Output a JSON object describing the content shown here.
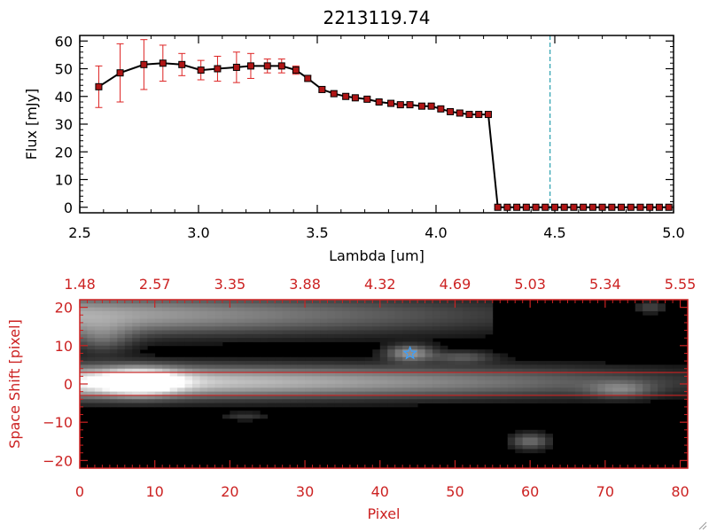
{
  "title": "2213119.74",
  "colors": {
    "axis": "#000000",
    "accent_red": "#cc2222",
    "errorbar": "#dd2222",
    "marker_fill": "#b01515",
    "cursor": "#2aa0b0",
    "star": "#3aa0ff"
  },
  "chart_data": [
    {
      "type": "line",
      "title": "2213119.74",
      "xlabel": "Lambda [um]",
      "ylabel": "Flux [mJy]",
      "xlim": [
        2.5,
        5.0
      ],
      "ylim": [
        -2,
        62
      ],
      "x_ticks": [
        "2.5",
        "3.0",
        "3.5",
        "4.0",
        "4.5",
        "5.0"
      ],
      "y_ticks": [
        "0",
        "10",
        "20",
        "30",
        "40",
        "50",
        "60"
      ],
      "vline_x": 4.48,
      "series": [
        {
          "x": [
            2.58,
            2.67,
            2.77,
            2.85,
            2.93,
            3.01,
            3.08,
            3.16,
            3.22,
            3.29,
            3.35,
            3.41,
            3.46,
            3.52,
            3.57,
            3.62,
            3.66,
            3.71,
            3.76,
            3.81,
            3.85,
            3.89,
            3.94,
            3.98,
            4.02,
            4.06,
            4.1,
            4.14,
            4.18,
            4.22,
            4.26,
            4.3,
            4.34,
            4.38,
            4.42,
            4.46,
            4.5,
            4.54,
            4.58,
            4.62,
            4.66,
            4.7,
            4.74,
            4.78,
            4.82,
            4.86,
            4.9,
            4.94,
            4.98
          ],
          "y": [
            43.5,
            48.5,
            51.5,
            52.0,
            51.5,
            49.5,
            50.0,
            50.5,
            51.0,
            51.0,
            51.0,
            49.5,
            46.5,
            42.5,
            41.0,
            40.0,
            39.5,
            39.0,
            38.0,
            37.5,
            37.0,
            37.0,
            36.5,
            36.5,
            35.5,
            34.5,
            34.0,
            33.5,
            33.5,
            33.5,
            0,
            0,
            0,
            0,
            0,
            0,
            0,
            0,
            0,
            0,
            0,
            0,
            0,
            0,
            0,
            0,
            0,
            0,
            0
          ],
          "yerr": [
            7.5,
            10.5,
            9.0,
            6.5,
            4.0,
            3.5,
            4.5,
            5.5,
            4.5,
            2.5,
            2.5,
            1.5,
            1.0,
            1.0,
            1.0,
            1.0,
            0.8,
            0.8,
            0.8,
            0.8,
            0.8,
            0.8,
            0.8,
            0.8,
            0.8,
            0.8,
            0.8,
            0.8,
            0.8,
            0.8,
            0.5,
            0.5,
            0.5,
            0.5,
            0.5,
            0.5,
            0.5,
            0.5,
            0.5,
            0.5,
            0.5,
            0.5,
            0.5,
            0.5,
            0.5,
            0.5,
            0.5,
            0.5,
            0.5
          ]
        }
      ]
    },
    {
      "type": "heatmap",
      "xlabel": "Pixel",
      "ylabel": "Space Shift [pixel]",
      "xlim": [
        0,
        81
      ],
      "ylim": [
        -22,
        22
      ],
      "x_ticks": [
        "0",
        "10",
        "20",
        "30",
        "40",
        "50",
        "60",
        "70",
        "80"
      ],
      "y_ticks": [
        "−20",
        "−10",
        "0",
        "10",
        "20"
      ],
      "top_ticks": [
        "1.48",
        "2.57",
        "3.35",
        "3.88",
        "4.32",
        "4.69",
        "5.03",
        "5.34",
        "5.55"
      ],
      "hlines": [
        3,
        -3
      ],
      "star_marker": {
        "x": 44,
        "y": 8
      },
      "features": [
        {
          "kind": "trace",
          "x0": 0,
          "x1": 55,
          "y": 18,
          "width": 5,
          "peak": 0.62,
          "fall": 0.75
        },
        {
          "kind": "trace",
          "x0": 0,
          "x1": 81,
          "y": 0.5,
          "width": 4,
          "peak": 0.9,
          "fall": 0.85
        },
        {
          "kind": "blob",
          "x": 8,
          "y": 0.5,
          "rx": 5,
          "ry": 3,
          "peak": 1.0
        },
        {
          "kind": "blob",
          "x": 44,
          "y": 8,
          "rx": 3,
          "ry": 2,
          "peak": 0.5
        },
        {
          "kind": "blob",
          "x": 51,
          "y": 7,
          "rx": 4,
          "ry": 1.5,
          "peak": 0.25
        },
        {
          "kind": "blob",
          "x": 72,
          "y": -1.5,
          "rx": 4,
          "ry": 2,
          "peak": 0.3
        },
        {
          "kind": "blob",
          "x": 60,
          "y": -15,
          "rx": 2.5,
          "ry": 2,
          "peak": 0.35
        },
        {
          "kind": "blob",
          "x": 22,
          "y": -8.5,
          "rx": 3,
          "ry": 1,
          "peak": 0.15
        },
        {
          "kind": "blob",
          "x": 76,
          "y": 20,
          "rx": 2,
          "ry": 1.5,
          "peak": 0.2
        },
        {
          "kind": "blob",
          "x": 3,
          "y": 12,
          "rx": 4,
          "ry": 4,
          "peak": 0.25
        }
      ]
    }
  ]
}
